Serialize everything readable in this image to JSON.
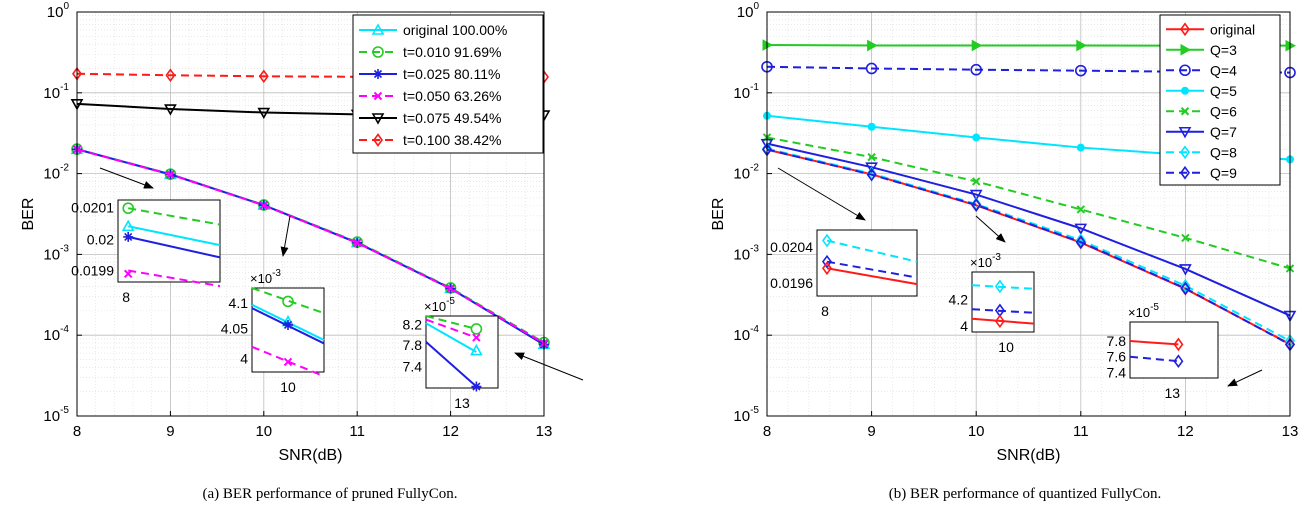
{
  "chart_data": [
    {
      "type": "line",
      "caption": "(a) BER performance of pruned FullyCon.",
      "xlabel": "SNR(dB)",
      "ylabel": "BER",
      "xlim": [
        8,
        13
      ],
      "ylim": [
        1e-05,
        1
      ],
      "log_y": true,
      "grid": true,
      "legend_position": "top-right",
      "x_ticks": [
        "8",
        "9",
        "10",
        "11",
        "12",
        "13"
      ],
      "x": [
        8,
        9,
        10,
        11,
        12,
        13
      ],
      "series": [
        {
          "name": "original 100.00%",
          "color": "#00e5ff",
          "dash": "solid",
          "marker": "triangle-up",
          "values": [
            0.02,
            0.0098,
            0.00408,
            0.0014,
            0.00038,
            7.75e-05
          ]
        },
        {
          "name": "t=0.010 91.69%",
          "color": "#22cc22",
          "dash": "dashed",
          "marker": "circle",
          "values": [
            0.0201,
            0.00985,
            0.00409,
            0.00142,
            0.000385,
            8.1e-05
          ]
        },
        {
          "name": "t=0.025 80.11%",
          "color": "#1f1fe0",
          "dash": "solid",
          "marker": "asterisk",
          "values": [
            0.02,
            0.00978,
            0.00407,
            0.00139,
            0.000378,
            7.65e-05
          ]
        },
        {
          "name": "t=0.050 63.26%",
          "color": "#ff00ff",
          "dash": "dashed",
          "marker": "x",
          "values": [
            0.0199,
            0.00975,
            0.00404,
            0.00139,
            0.000376,
            7.95e-05
          ]
        },
        {
          "name": "t=0.075 49.54%",
          "color": "#000000",
          "dash": "solid",
          "marker": "triangle-down",
          "values": [
            0.073,
            0.063,
            0.057,
            0.054,
            0.053,
            0.053
          ]
        },
        {
          "name": "t=0.100 38.42%",
          "color": "#ff1a1a",
          "dash": "dashed",
          "marker": "diamond",
          "values": [
            0.172,
            0.165,
            0.16,
            0.158,
            0.157,
            0.157
          ]
        }
      ],
      "insets": [
        {
          "x_label": "8",
          "y_ticks": [
            "0.0201",
            "0.02",
            "0.0199"
          ],
          "exponent": ""
        },
        {
          "x_label": "10",
          "y_ticks": [
            "4.1",
            "4.05",
            "4"
          ],
          "exponent": "-3"
        },
        {
          "x_label": "13",
          "y_ticks": [
            "8.2",
            "7.8",
            "7.4"
          ],
          "exponent": "-5"
        }
      ]
    },
    {
      "type": "line",
      "caption": "(b) BER performance of quantized FullyCon.",
      "xlabel": "SNR(dB)",
      "ylabel": "BER",
      "xlim": [
        8,
        13
      ],
      "ylim": [
        1e-05,
        1
      ],
      "log_y": true,
      "grid": true,
      "legend_position": "top-right",
      "x_ticks": [
        "8",
        "9",
        "10",
        "11",
        "12",
        "13"
      ],
      "x": [
        8,
        9,
        10,
        11,
        12,
        13
      ],
      "series": [
        {
          "name": "original",
          "color": "#ff1a1a",
          "dash": "solid",
          "marker": "diamond",
          "values": [
            0.0198,
            0.0098,
            0.00405,
            0.0014,
            0.000375,
            7.75e-05
          ]
        },
        {
          "name": "Q=3",
          "color": "#22cc22",
          "dash": "solid",
          "marker": "triangle-right",
          "values": [
            0.39,
            0.385,
            0.385,
            0.385,
            0.383,
            0.383
          ]
        },
        {
          "name": "Q=4",
          "color": "#1f1fe0",
          "dash": "dashed",
          "marker": "circle",
          "values": [
            0.21,
            0.2,
            0.193,
            0.188,
            0.182,
            0.178
          ]
        },
        {
          "name": "Q=5",
          "color": "#00e5ff",
          "dash": "solid",
          "marker": "dot",
          "values": [
            0.052,
            0.038,
            0.028,
            0.021,
            0.017,
            0.015
          ]
        },
        {
          "name": "Q=6",
          "color": "#22cc22",
          "dash": "dashed",
          "marker": "x",
          "values": [
            0.028,
            0.016,
            0.008,
            0.0036,
            0.0016,
            0.00067
          ]
        },
        {
          "name": "Q=7",
          "color": "#1f1fe0",
          "dash": "solid",
          "marker": "triangle-down",
          "values": [
            0.0235,
            0.012,
            0.0055,
            0.0021,
            0.00066,
            0.000175
          ]
        },
        {
          "name": "Q=8",
          "color": "#00e5ff",
          "dash": "dashed",
          "marker": "diamond",
          "values": [
            0.0204,
            0.01,
            0.0042,
            0.0015,
            0.00041,
            8.5e-05
          ]
        },
        {
          "name": "Q=9",
          "color": "#1f1fe0",
          "dash": "dashed",
          "marker": "diamond",
          "values": [
            0.0199,
            0.0097,
            0.0041,
            0.00142,
            0.00038,
            7.65e-05
          ]
        }
      ],
      "insets": [
        {
          "x_label": "8",
          "y_ticks": [
            "0.0204",
            "0.0196"
          ],
          "exponent": ""
        },
        {
          "x_label": "10",
          "y_ticks": [
            "4.2",
            "4"
          ],
          "exponent": "-3"
        },
        {
          "x_label": "13",
          "y_ticks": [
            "7.8",
            "7.6",
            "7.4"
          ],
          "exponent": "-5"
        }
      ]
    }
  ]
}
